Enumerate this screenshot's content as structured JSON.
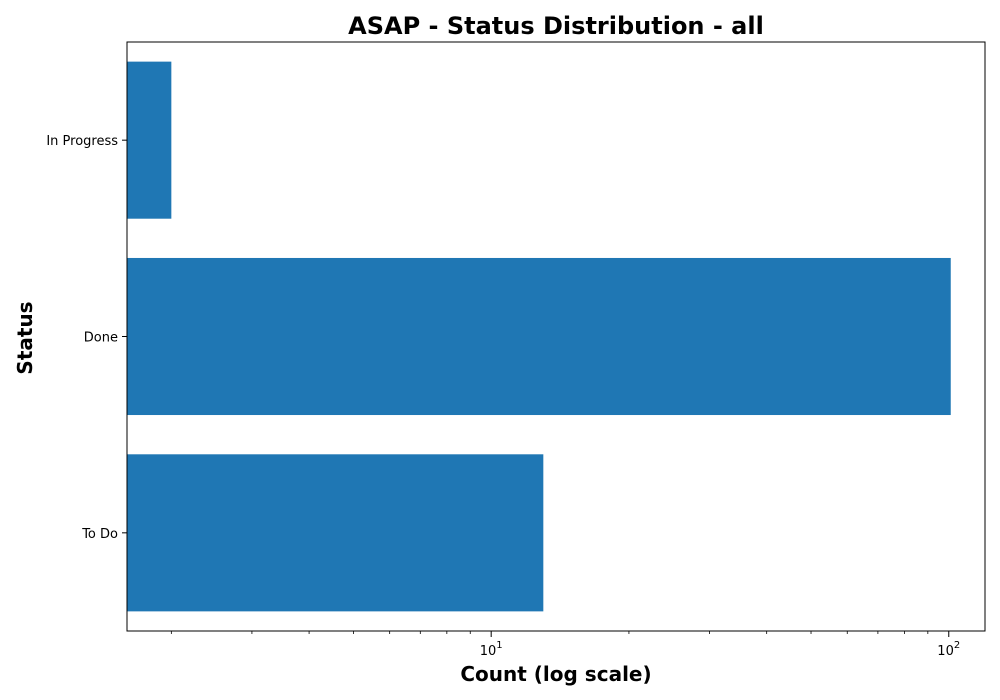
{
  "chart_data": {
    "type": "bar",
    "orientation": "horizontal",
    "title": "ASAP - Status Distribution - all",
    "xlabel": "Count (log scale)",
    "ylabel": "Status",
    "xscale": "log",
    "xlim": [
      1.6,
      120
    ],
    "categories": [
      "In Progress",
      "Done",
      "To Do"
    ],
    "values": [
      2,
      101,
      13
    ],
    "x_ticks": [
      {
        "value": 10,
        "base": "10",
        "exp": "1"
      },
      {
        "value": 100,
        "base": "10",
        "exp": "2"
      }
    ],
    "grid": false,
    "colors": {
      "bar": "#1f77b4"
    }
  }
}
